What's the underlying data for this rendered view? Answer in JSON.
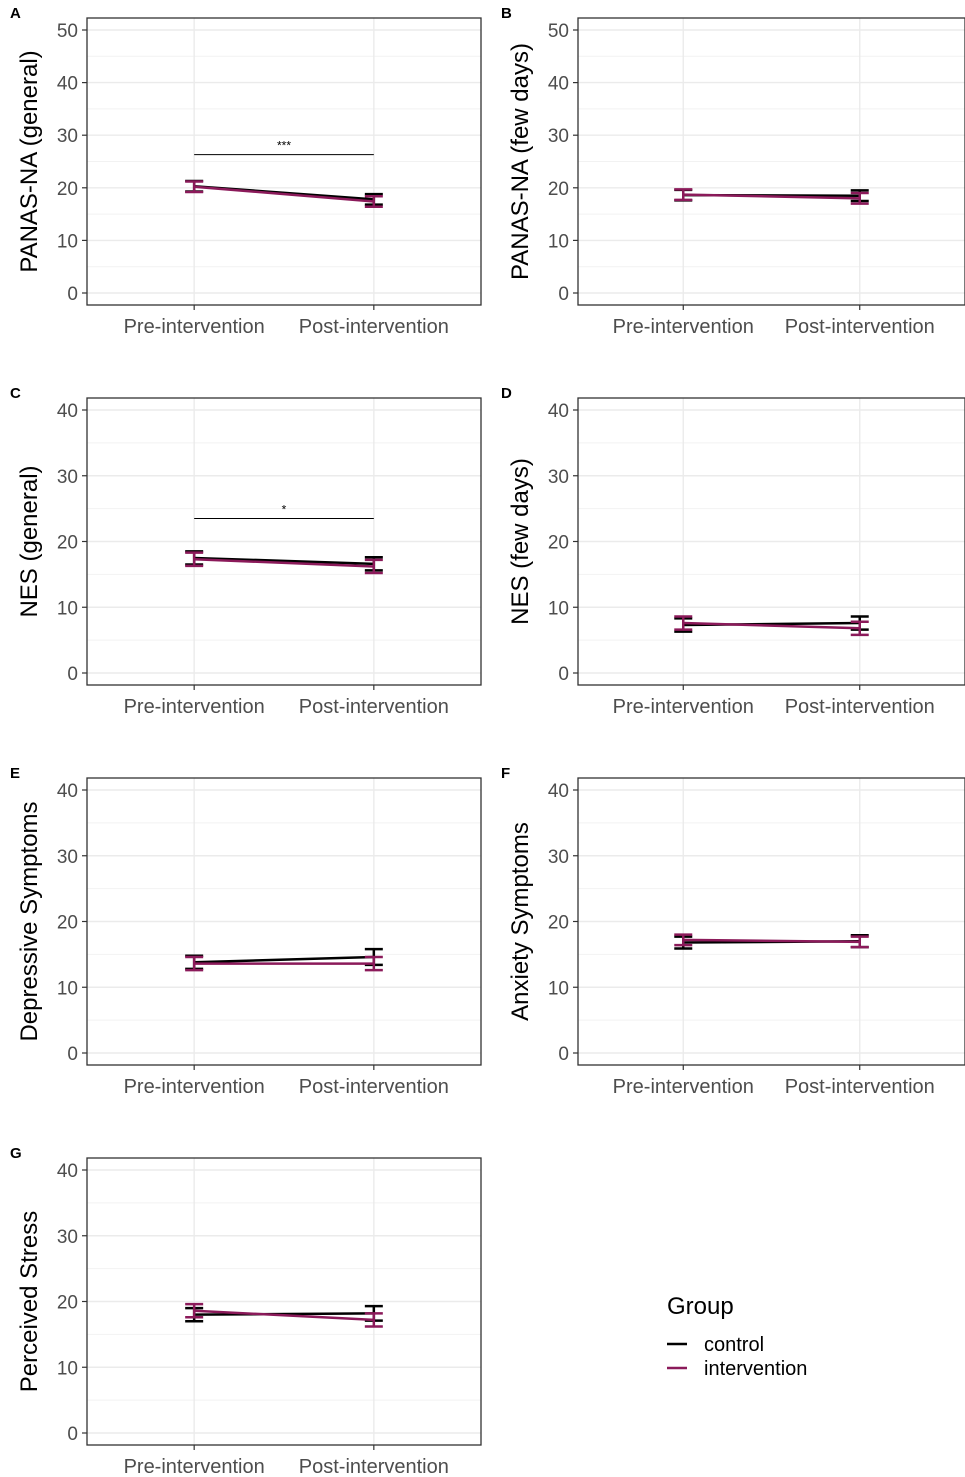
{
  "legend": {
    "title": "Group",
    "entries": [
      {
        "label": "control",
        "color": "#000000"
      },
      {
        "label": "intervention",
        "color": "#8B1A5A"
      }
    ]
  },
  "chart_data": [
    {
      "panel": "A",
      "type": "line",
      "ylabel": "PANAS-NA (general)",
      "categories": [
        "Pre-intervention",
        "Post-intervention"
      ],
      "ylim": [
        0,
        50
      ],
      "yticks": [
        0,
        10,
        20,
        30,
        40,
        50
      ],
      "series": [
        {
          "name": "control",
          "values": [
            20.3,
            17.8
          ],
          "errors": [
            [
              19.3,
              21.3
            ],
            [
              16.8,
              18.8
            ]
          ]
        },
        {
          "name": "intervention",
          "values": [
            20.2,
            17.4
          ],
          "errors": [
            [
              19.2,
              21.2
            ],
            [
              16.4,
              18.4
            ]
          ]
        }
      ],
      "significance": "***"
    },
    {
      "panel": "B",
      "type": "line",
      "ylabel": "PANAS-NA (few days)",
      "categories": [
        "Pre-intervention",
        "Post-intervention"
      ],
      "ylim": [
        0,
        50
      ],
      "yticks": [
        0,
        10,
        20,
        30,
        40,
        50
      ],
      "series": [
        {
          "name": "control",
          "values": [
            18.6,
            18.5
          ],
          "errors": [
            [
              17.6,
              19.6
            ],
            [
              17.5,
              19.5
            ]
          ]
        },
        {
          "name": "intervention",
          "values": [
            18.7,
            18.0
          ],
          "errors": [
            [
              17.7,
              19.7
            ],
            [
              17.0,
              19.0
            ]
          ]
        }
      ]
    },
    {
      "panel": "C",
      "type": "line",
      "ylabel": "NES (general)",
      "categories": [
        "Pre-intervention",
        "Post-intervention"
      ],
      "ylim": [
        0,
        40
      ],
      "yticks": [
        0,
        10,
        20,
        30,
        40
      ],
      "series": [
        {
          "name": "control",
          "values": [
            17.5,
            16.6
          ],
          "errors": [
            [
              16.5,
              18.5
            ],
            [
              15.6,
              17.6
            ]
          ]
        },
        {
          "name": "intervention",
          "values": [
            17.3,
            16.2
          ],
          "errors": [
            [
              16.3,
              18.3
            ],
            [
              15.2,
              17.2
            ]
          ]
        }
      ],
      "significance": "*"
    },
    {
      "panel": "D",
      "type": "line",
      "ylabel": "NES (few days)",
      "categories": [
        "Pre-intervention",
        "Post-intervention"
      ],
      "ylim": [
        0,
        40
      ],
      "yticks": [
        0,
        10,
        20,
        30,
        40
      ],
      "series": [
        {
          "name": "control",
          "values": [
            7.3,
            7.6
          ],
          "errors": [
            [
              6.3,
              8.3
            ],
            [
              6.6,
              8.6
            ]
          ]
        },
        {
          "name": "intervention",
          "values": [
            7.6,
            6.8
          ],
          "errors": [
            [
              6.6,
              8.6
            ],
            [
              5.8,
              7.8
            ]
          ]
        }
      ]
    },
    {
      "panel": "E",
      "type": "line",
      "ylabel": "Depressive Symptoms",
      "categories": [
        "Pre-intervention",
        "Post-intervention"
      ],
      "ylim": [
        0,
        40
      ],
      "yticks": [
        0,
        10,
        20,
        30,
        40
      ],
      "series": [
        {
          "name": "control",
          "values": [
            13.8,
            14.6
          ],
          "errors": [
            [
              12.8,
              14.8
            ],
            [
              13.4,
              15.8
            ]
          ]
        },
        {
          "name": "intervention",
          "values": [
            13.6,
            13.6
          ],
          "errors": [
            [
              12.6,
              14.6
            ],
            [
              12.6,
              14.6
            ]
          ]
        }
      ]
    },
    {
      "panel": "F",
      "type": "line",
      "ylabel": "Anxiety Symptoms",
      "categories": [
        "Pre-intervention",
        "Post-intervention"
      ],
      "ylim": [
        0,
        40
      ],
      "yticks": [
        0,
        10,
        20,
        30,
        40
      ],
      "series": [
        {
          "name": "control",
          "values": [
            16.8,
            17.0
          ],
          "errors": [
            [
              15.9,
              17.7
            ],
            [
              16.1,
              17.9
            ]
          ]
        },
        {
          "name": "intervention",
          "values": [
            17.2,
            16.9
          ],
          "errors": [
            [
              16.4,
              18.0
            ],
            [
              16.1,
              17.7
            ]
          ]
        }
      ]
    },
    {
      "panel": "G",
      "type": "line",
      "ylabel": "Perceived Stress",
      "categories": [
        "Pre-intervention",
        "Post-intervention"
      ],
      "ylim": [
        0,
        40
      ],
      "yticks": [
        0,
        10,
        20,
        30,
        40
      ],
      "series": [
        {
          "name": "control",
          "values": [
            18.0,
            18.2
          ],
          "errors": [
            [
              17.0,
              19.0
            ],
            [
              17.1,
              19.3
            ]
          ]
        },
        {
          "name": "intervention",
          "values": [
            18.6,
            17.2
          ],
          "errors": [
            [
              17.6,
              19.6
            ],
            [
              16.2,
              18.2
            ]
          ]
        }
      ]
    }
  ]
}
